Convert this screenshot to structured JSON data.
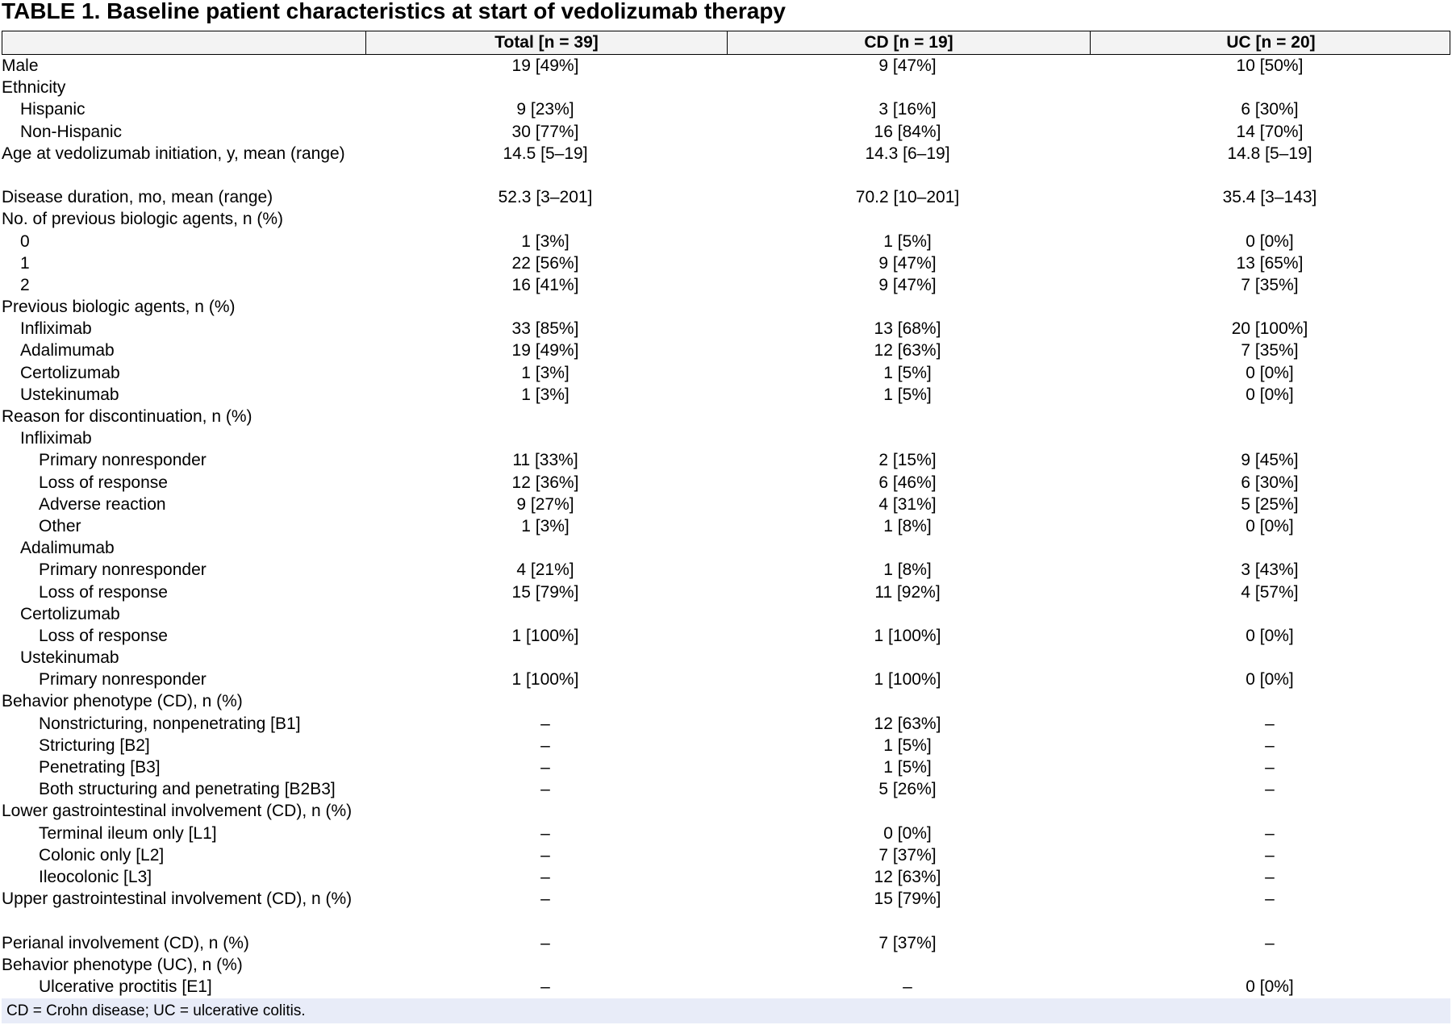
{
  "title": "TABLE 1. Baseline patient characteristics at start of vedolizumab therapy",
  "columns": [
    "",
    "Total [n = 39]",
    "CD [n = 19]",
    "UC [n = 20]"
  ],
  "rows": [
    {
      "label": "Male",
      "indent": 0,
      "h": 1,
      "v": [
        "19 [49%]",
        "9 [47%]",
        "10 [50%]"
      ]
    },
    {
      "label": "Ethnicity",
      "indent": 0,
      "h": 1,
      "v": [
        "",
        "",
        ""
      ]
    },
    {
      "label": "Hispanic",
      "indent": 1,
      "h": 1,
      "v": [
        "9 [23%]",
        "3 [16%]",
        "6 [30%]"
      ]
    },
    {
      "label": "Non-Hispanic",
      "indent": 1,
      "h": 1,
      "v": [
        "30 [77%]",
        "16 [84%]",
        "14 [70%]"
      ]
    },
    {
      "label": "Age at vedolizumab initiation, y, mean (range)",
      "indent": 0,
      "h": 2,
      "v": [
        "14.5 [5–19]",
        "14.3 [6–19]",
        "14.8 [5–19]"
      ]
    },
    {
      "label": "Disease duration, mo, mean (range)",
      "indent": 0,
      "h": 1,
      "v": [
        "52.3 [3–201]",
        "70.2 [10–201]",
        "35.4 [3–143]"
      ]
    },
    {
      "label": "No. of previous biologic agents, n (%)",
      "indent": 0,
      "h": 1,
      "v": [
        "",
        "",
        ""
      ]
    },
    {
      "label": "0",
      "indent": 1,
      "h": 1,
      "v": [
        "1 [3%]",
        "1 [5%]",
        "0 [0%]"
      ]
    },
    {
      "label": "1",
      "indent": 1,
      "h": 1,
      "v": [
        "22 [56%]",
        "9 [47%]",
        "13 [65%]"
      ]
    },
    {
      "label": "2",
      "indent": 1,
      "h": 1,
      "v": [
        "16 [41%]",
        "9 [47%]",
        "7 [35%]"
      ]
    },
    {
      "label": "Previous biologic agents, n (%)",
      "indent": 0,
      "h": 1,
      "v": [
        "",
        "",
        ""
      ]
    },
    {
      "label": "Infliximab",
      "indent": 1,
      "h": 1,
      "v": [
        "33 [85%]",
        "13 [68%]",
        "20 [100%]"
      ]
    },
    {
      "label": "Adalimumab",
      "indent": 1,
      "h": 1,
      "v": [
        "19 [49%]",
        "12 [63%]",
        "7 [35%]"
      ]
    },
    {
      "label": "Certolizumab",
      "indent": 1,
      "h": 1,
      "v": [
        "1 [3%]",
        "1 [5%]",
        "0 [0%]"
      ]
    },
    {
      "label": "Ustekinumab",
      "indent": 1,
      "h": 1,
      "v": [
        "1 [3%]",
        "1 [5%]",
        "0 [0%]"
      ]
    },
    {
      "label": "Reason for discontinuation, n (%)",
      "indent": 0,
      "h": 1,
      "v": [
        "",
        "",
        ""
      ]
    },
    {
      "label": "Infliximab",
      "indent": 1,
      "h": 1,
      "v": [
        "",
        "",
        ""
      ]
    },
    {
      "label": "Primary nonresponder",
      "indent": 2,
      "h": 1,
      "v": [
        "11 [33%]",
        "2 [15%]",
        "9 [45%]"
      ]
    },
    {
      "label": "Loss of response",
      "indent": 2,
      "h": 1,
      "v": [
        "12 [36%]",
        "6 [46%]",
        "6 [30%]"
      ]
    },
    {
      "label": "Adverse reaction",
      "indent": 2,
      "h": 1,
      "v": [
        "9 [27%]",
        "4 [31%]",
        "5 [25%]"
      ]
    },
    {
      "label": "Other",
      "indent": 2,
      "h": 1,
      "v": [
        "1 [3%]",
        "1 [8%]",
        "0 [0%]"
      ]
    },
    {
      "label": "Adalimumab",
      "indent": 1,
      "h": 1,
      "v": [
        "",
        "",
        ""
      ]
    },
    {
      "label": "Primary nonresponder",
      "indent": 2,
      "h": 1,
      "v": [
        "4 [21%]",
        "1 [8%]",
        "3 [43%]"
      ]
    },
    {
      "label": "Loss of response",
      "indent": 2,
      "h": 1,
      "v": [
        "15 [79%]",
        "11 [92%]",
        "4 [57%]"
      ]
    },
    {
      "label": "Certolizumab",
      "indent": 1,
      "h": 1,
      "v": [
        "",
        "",
        ""
      ]
    },
    {
      "label": "Loss of response",
      "indent": 2,
      "h": 1,
      "v": [
        "1 [100%]",
        "1 [100%]",
        "0 [0%]"
      ]
    },
    {
      "label": "Ustekinumab",
      "indent": 1,
      "h": 1,
      "v": [
        "",
        "",
        ""
      ]
    },
    {
      "label": "Primary nonresponder",
      "indent": 2,
      "h": 1,
      "v": [
        "1 [100%]",
        "1 [100%]",
        "0 [0%]"
      ]
    },
    {
      "label": "Behavior phenotype (CD), n (%)",
      "indent": 0,
      "h": 1,
      "v": [
        "",
        "",
        ""
      ]
    },
    {
      "label": "Nonstricturing, nonpenetrating [B1]",
      "indent": 2,
      "h": 1,
      "v": [
        "–",
        "12 [63%]",
        "–"
      ]
    },
    {
      "label": "Stricturing [B2]",
      "indent": 2,
      "h": 1,
      "v": [
        "–",
        "1 [5%]",
        "–"
      ]
    },
    {
      "label": "Penetrating [B3]",
      "indent": 2,
      "h": 1,
      "v": [
        "–",
        "1 [5%]",
        "–"
      ]
    },
    {
      "label": "Both structuring and penetrating [B2B3]",
      "indent": 2,
      "h": 1,
      "v": [
        "–",
        "5 [26%]",
        "–"
      ]
    },
    {
      "label": "Lower gastrointestinal involvement (CD), n (%)",
      "indent": 0,
      "h": 1,
      "v": [
        "",
        "",
        ""
      ]
    },
    {
      "label": "Terminal ileum only [L1]",
      "indent": 2,
      "h": 1,
      "v": [
        "–",
        "0 [0%]",
        "–"
      ]
    },
    {
      "label": "Colonic only [L2]",
      "indent": 2,
      "h": 1,
      "v": [
        "–",
        "7 [37%]",
        "–"
      ]
    },
    {
      "label": "Ileocolonic [L3]",
      "indent": 2,
      "h": 1,
      "v": [
        "–",
        "12 [63%]",
        "–"
      ]
    },
    {
      "label": "Upper gastrointestinal involvement (CD), n (%)",
      "indent": 0,
      "h": 2,
      "v": [
        "–",
        "15 [79%]",
        "–"
      ]
    },
    {
      "label": "Perianal involvement (CD), n (%)",
      "indent": 0,
      "h": 1,
      "v": [
        "–",
        "7 [37%]",
        "–"
      ]
    },
    {
      "label": "Behavior phenotype (UC), n (%)",
      "indent": 0,
      "h": 1,
      "v": [
        "",
        "",
        ""
      ]
    },
    {
      "label": "Ulcerative proctitis [E1]",
      "indent": 2,
      "h": 1,
      "v": [
        "–",
        "–",
        "0 [0%]"
      ]
    }
  ],
  "footnote": "CD = Crohn disease; UC = ulcerative colitis."
}
